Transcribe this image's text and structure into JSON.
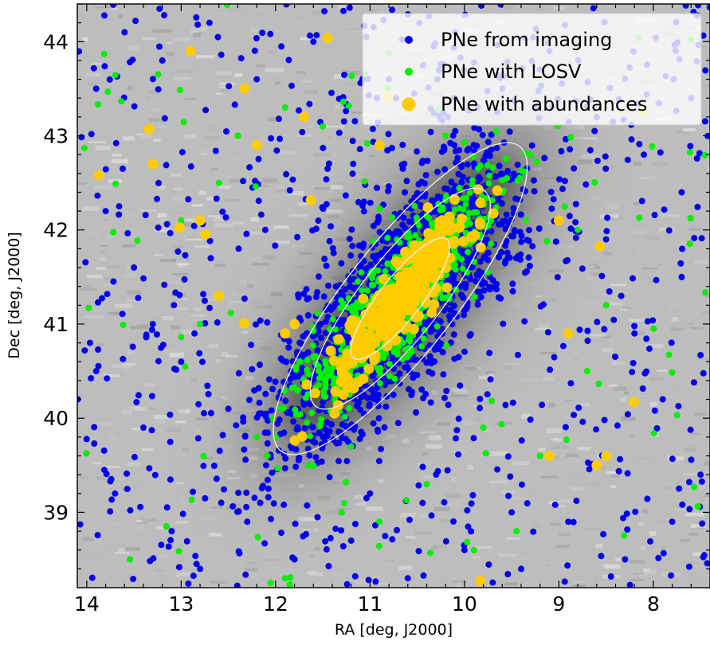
{
  "chart_data": {
    "type": "scatter",
    "title": "",
    "xlabel": "RA [deg, J2000]",
    "ylabel": "Dec [deg, J2000]",
    "xlim": [
      14.1,
      7.4
    ],
    "ylim": [
      38.2,
      44.4
    ],
    "x_inverted": true,
    "xticks": [
      "14",
      "13",
      "12",
      "11",
      "10",
      "9",
      "8"
    ],
    "yticks": [
      "39",
      "40",
      "41",
      "42",
      "43",
      "44"
    ],
    "grid": false,
    "legend_position": "top-right",
    "background": "grayscale density map of the galaxy disk",
    "major_axis_pa_deg": 38,
    "center": {
      "ra": 10.68,
      "dec": 41.27
    },
    "ellipses": [
      {
        "ra": 10.68,
        "dec": 41.27,
        "a_deg": 0.8,
        "b_deg": 0.22
      },
      {
        "ra": 10.68,
        "dec": 41.27,
        "a_deg": 1.45,
        "b_deg": 0.42
      },
      {
        "ra": 10.68,
        "dec": 41.27,
        "a_deg": 2.05,
        "b_deg": 0.58
      }
    ],
    "series": [
      {
        "name": "PNe from imaging",
        "color": "#0000ee",
        "marker_size": 4,
        "count": 2350,
        "disk_fraction": 0.72,
        "disk_sigma_major": 0.85,
        "disk_sigma_minor": 0.33,
        "halo_points": [
          [
            13.9,
            43.5
          ],
          [
            13.6,
            44.1
          ],
          [
            13.2,
            43.8
          ],
          [
            12.7,
            44.2
          ],
          [
            12.2,
            43.6
          ],
          [
            11.6,
            44.0
          ],
          [
            10.8,
            43.6
          ],
          [
            10.1,
            44.1
          ],
          [
            9.6,
            43.5
          ],
          [
            9.1,
            43.9
          ],
          [
            8.6,
            43.2
          ],
          [
            8.1,
            42.8
          ],
          [
            7.7,
            42.4
          ],
          [
            7.6,
            43.4
          ],
          [
            13.8,
            42.2
          ],
          [
            13.5,
            41.6
          ],
          [
            13.3,
            41.0
          ],
          [
            13.9,
            40.5
          ],
          [
            13.4,
            39.9
          ],
          [
            13.7,
            39.2
          ],
          [
            13.1,
            38.8
          ],
          [
            12.8,
            38.4
          ],
          [
            12.3,
            38.9
          ],
          [
            11.8,
            38.5
          ],
          [
            11.2,
            38.7
          ],
          [
            10.6,
            38.3
          ],
          [
            10.0,
            38.6
          ],
          [
            9.4,
            38.4
          ],
          [
            8.9,
            38.9
          ],
          [
            8.3,
            38.5
          ],
          [
            7.8,
            38.9
          ],
          [
            7.5,
            39.4
          ],
          [
            7.9,
            40.2
          ],
          [
            8.2,
            40.9
          ],
          [
            7.7,
            41.5
          ],
          [
            8.5,
            41.9
          ],
          [
            12.5,
            40.1
          ],
          [
            12.1,
            39.5
          ],
          [
            11.0,
            39.2
          ],
          [
            10.3,
            39.4
          ],
          [
            9.5,
            39.0
          ],
          [
            13.0,
            40.6
          ]
        ]
      },
      {
        "name": "PNe with LOSV",
        "color": "#00ee00",
        "marker_size": 4,
        "count": 880,
        "disk_fraction": 0.9,
        "disk_sigma_major": 0.72,
        "disk_sigma_minor": 0.2,
        "halo_points": [
          [
            11.9,
            43.3
          ],
          [
            11.5,
            43.1
          ],
          [
            12.6,
            42.5
          ],
          [
            8.8,
            42.0
          ],
          [
            8.5,
            41.2
          ],
          [
            9.2,
            39.6
          ],
          [
            10.4,
            39.3
          ],
          [
            11.3,
            39.0
          ],
          [
            12.0,
            39.8
          ],
          [
            11.9,
            38.3
          ],
          [
            10.9,
            38.9
          ],
          [
            9.9,
            38.6
          ],
          [
            12.8,
            41.0
          ],
          [
            8.7,
            40.5
          ],
          [
            13.0,
            42.1
          ],
          [
            12.4,
            43.0
          ],
          [
            9.3,
            42.8
          ],
          [
            10.2,
            43.0
          ],
          [
            11.2,
            39.7
          ],
          [
            9.8,
            39.9
          ]
        ]
      },
      {
        "name": "PNe with abundances",
        "color": "#ffcc00",
        "marker_size": 6.5,
        "count": 330,
        "disk_fraction": 0.96,
        "disk_sigma_major": 0.6,
        "disk_sigma_minor": 0.13,
        "halo_points": [
          [
            12.9,
            43.9
          ],
          [
            13.3,
            42.7
          ],
          [
            12.8,
            42.1
          ],
          [
            12.6,
            41.3
          ],
          [
            11.9,
            40.9
          ],
          [
            12.2,
            42.9
          ],
          [
            11.7,
            43.2
          ],
          [
            8.5,
            39.6
          ],
          [
            8.6,
            39.5
          ],
          [
            8.9,
            40.9
          ],
          [
            9.0,
            42.1
          ],
          [
            9.1,
            39.6
          ],
          [
            11.8,
            41.0
          ],
          [
            10.9,
            42.9
          ]
        ]
      }
    ]
  },
  "legend": {
    "items": [
      {
        "label": "PNe from imaging",
        "color": "#0000ee"
      },
      {
        "label": "PNe with LOSV",
        "color": "#00ee00"
      },
      {
        "label": "PNe with abundances",
        "color": "#ffcc00"
      }
    ]
  }
}
